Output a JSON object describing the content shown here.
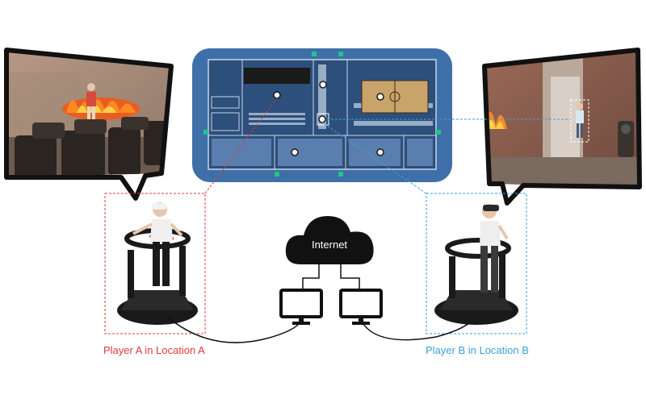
{
  "cloud": {
    "label": "Internet"
  },
  "players": [
    {
      "label": "Player A in Location A",
      "color": "#e03a3a"
    },
    {
      "label": "Player B in Location B",
      "color": "#3aa0d8"
    }
  ],
  "colors": {
    "player_a": "#e03a3a",
    "player_b": "#3aa0d8",
    "floorplan_bg": "#3f6fa8",
    "marker": "#22c58a",
    "bubble_border": "#111111"
  }
}
